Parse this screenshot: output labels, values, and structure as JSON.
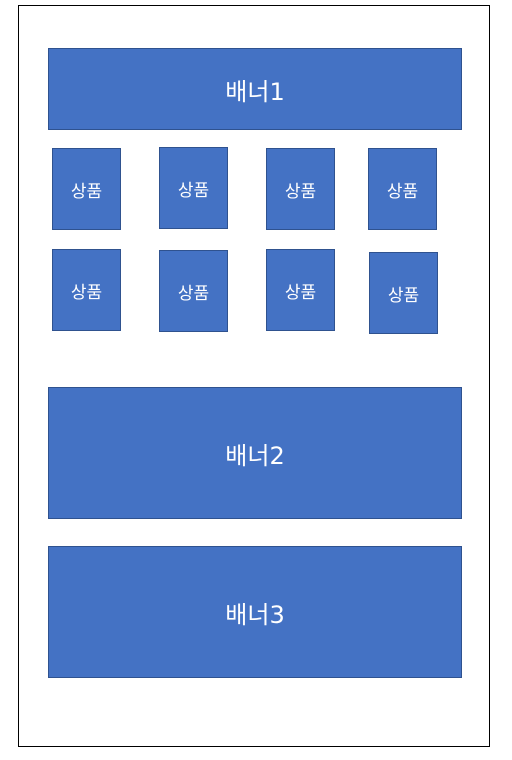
{
  "colors": {
    "block_fill": "#4472C4",
    "block_border": "#2F528F",
    "text": "#FFFFFF",
    "frame_border": "#000000"
  },
  "banners": [
    "배너1",
    "배너2",
    "배너3"
  ],
  "products": [
    "상품",
    "상품",
    "상품",
    "상품",
    "상품",
    "상품",
    "상품",
    "상품"
  ]
}
